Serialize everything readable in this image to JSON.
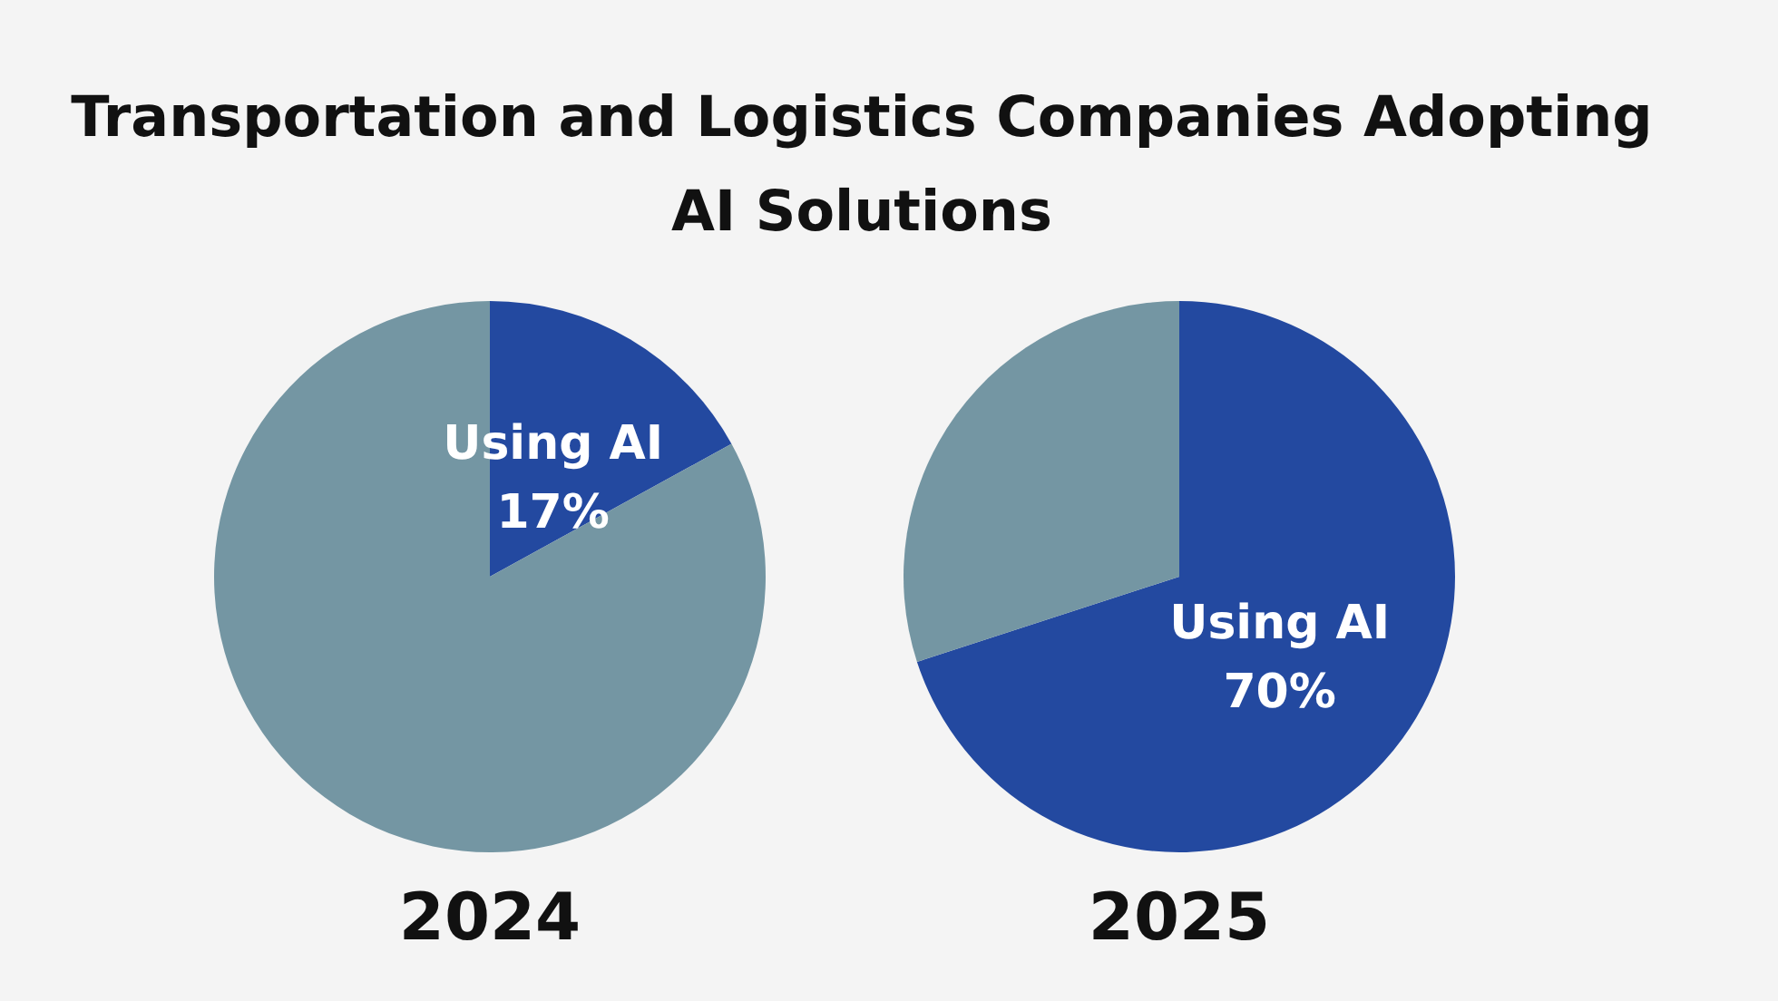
{
  "chart_data": [
    {
      "type": "pie",
      "title": "Transportation and Logistics Companies Adopting AI Solutions",
      "xlabel": "2024",
      "categories": [
        "Using AI",
        null
      ],
      "values": [
        17,
        83
      ],
      "colors": [
        "#2349a0",
        "#7496a3"
      ],
      "value_labels": [
        "17%",
        null
      ]
    },
    {
      "type": "pie",
      "xlabel": "2025",
      "categories": [
        "Using AI",
        null
      ],
      "values": [
        70,
        30
      ],
      "colors": [
        "#2349a0",
        "#7496a3"
      ],
      "value_labels": [
        "70%",
        null
      ]
    }
  ]
}
